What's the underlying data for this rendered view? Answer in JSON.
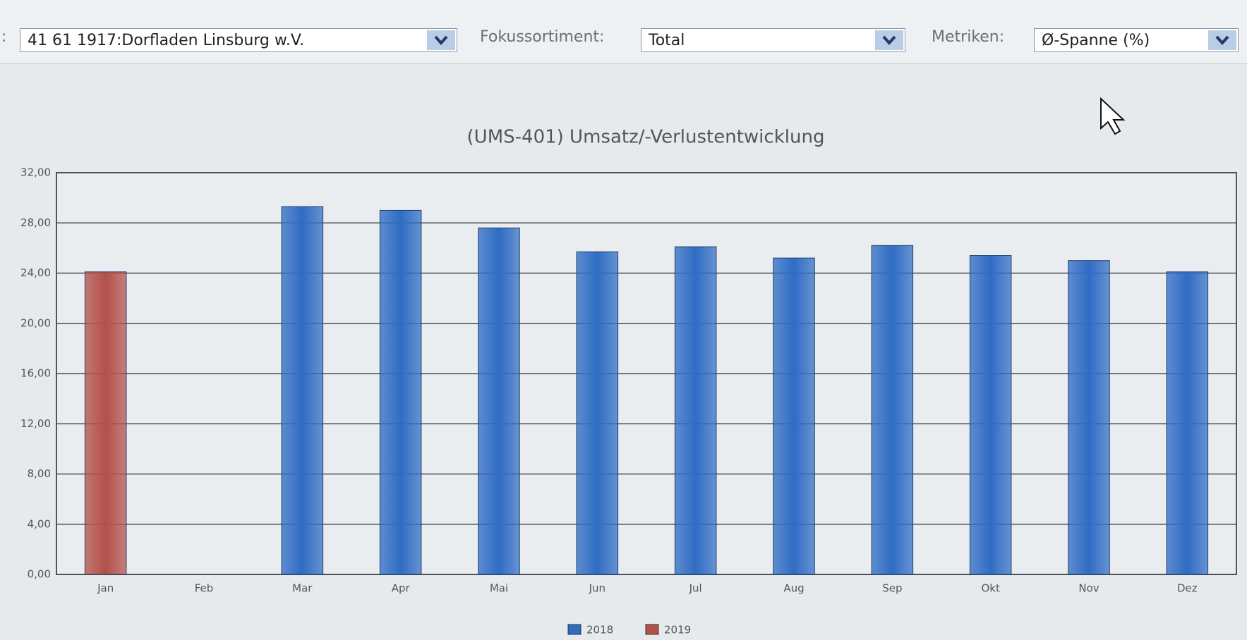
{
  "toolbar": {
    "cut_label": ":",
    "store": "41 61 1917:Dorfladen Linsburg w.V.",
    "focus_label": "Fokussortiment:",
    "focus": "Total",
    "metrics_label": "Metriken:",
    "metrics": "Ø-Spanne (%)"
  },
  "chart_data": {
    "type": "bar",
    "title": "(UMS-401) Umsatz/-Verlustentwicklung",
    "categories": [
      "Jan",
      "Feb",
      "Mar",
      "Apr",
      "Mai",
      "Jun",
      "Jul",
      "Aug",
      "Sep",
      "Okt",
      "Nov",
      "Dez"
    ],
    "series": [
      {
        "name": "2018",
        "color": "#2f6cc4",
        "values": [
          null,
          null,
          29.3,
          29.0,
          27.6,
          25.7,
          26.1,
          25.2,
          26.2,
          25.4,
          25.0,
          24.1
        ]
      },
      {
        "name": "2019",
        "color": "#b4504a",
        "values": [
          24.1,
          null,
          null,
          null,
          null,
          null,
          null,
          null,
          null,
          null,
          null,
          null
        ]
      }
    ],
    "ylim": [
      0,
      32
    ],
    "yticks": [
      {
        "value": 0,
        "label": "0,00"
      },
      {
        "value": 4,
        "label": "4,00"
      },
      {
        "value": 8,
        "label": "8,00"
      },
      {
        "value": 12,
        "label": "12,00"
      },
      {
        "value": 16,
        "label": "16,00"
      },
      {
        "value": 20,
        "label": "20,00"
      },
      {
        "value": 24,
        "label": "24,00"
      },
      {
        "value": 28,
        "label": "28,00"
      },
      {
        "value": 32,
        "label": "32,00"
      }
    ],
    "grid": true,
    "legend": "bottom"
  }
}
